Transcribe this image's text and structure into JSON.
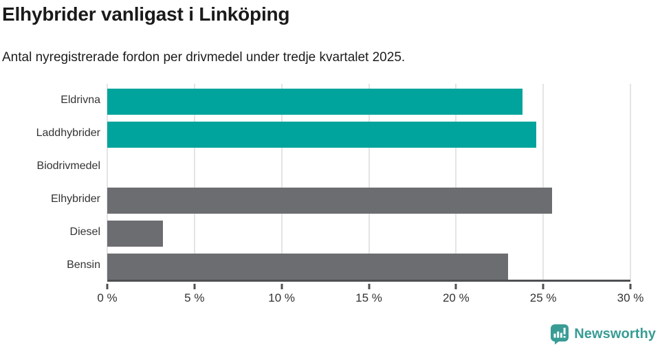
{
  "header": {
    "title": "Elhybrider vanligast i Linköping",
    "subtitle": "Antal nyregistrerade fordon per drivmedel under tredje kvartalet 2025."
  },
  "footer": {
    "brand": "Newsworthy"
  },
  "colors": {
    "teal": "#00a49c",
    "gray": "#6c6d71",
    "axis": "#4f5052",
    "grid": "#e4e4e4",
    "title_text": "#1a1a1a",
    "label_text": "#333333",
    "brand_teal": "#389c95"
  },
  "chart_data": {
    "type": "bar",
    "orientation": "horizontal",
    "title": "Elhybrider vanligast i Linköping",
    "subtitle": "Antal nyregistrerade fordon per drivmedel under tredje kvartalet 2025.",
    "categories": [
      "Eldrivna",
      "Laddhybrider",
      "Biodrivmedel",
      "Elhybrider",
      "Diesel",
      "Bensin"
    ],
    "values": [
      23.8,
      24.6,
      0,
      25.5,
      3.2,
      23.0
    ],
    "bar_colors": [
      "#00a49c",
      "#00a49c",
      "#00a49c",
      "#6c6d71",
      "#6c6d71",
      "#6c6d71"
    ],
    "xlabel": "",
    "ylabel": "",
    "xlim": [
      0,
      30
    ],
    "xticks": [
      0,
      5,
      10,
      15,
      20,
      25,
      30
    ],
    "xtick_labels": [
      "0 %",
      "5 %",
      "10 %",
      "15 %",
      "20 %",
      "25 %",
      "30 %"
    ],
    "grid": "vertical-only",
    "legend": "none",
    "unit": "%"
  }
}
